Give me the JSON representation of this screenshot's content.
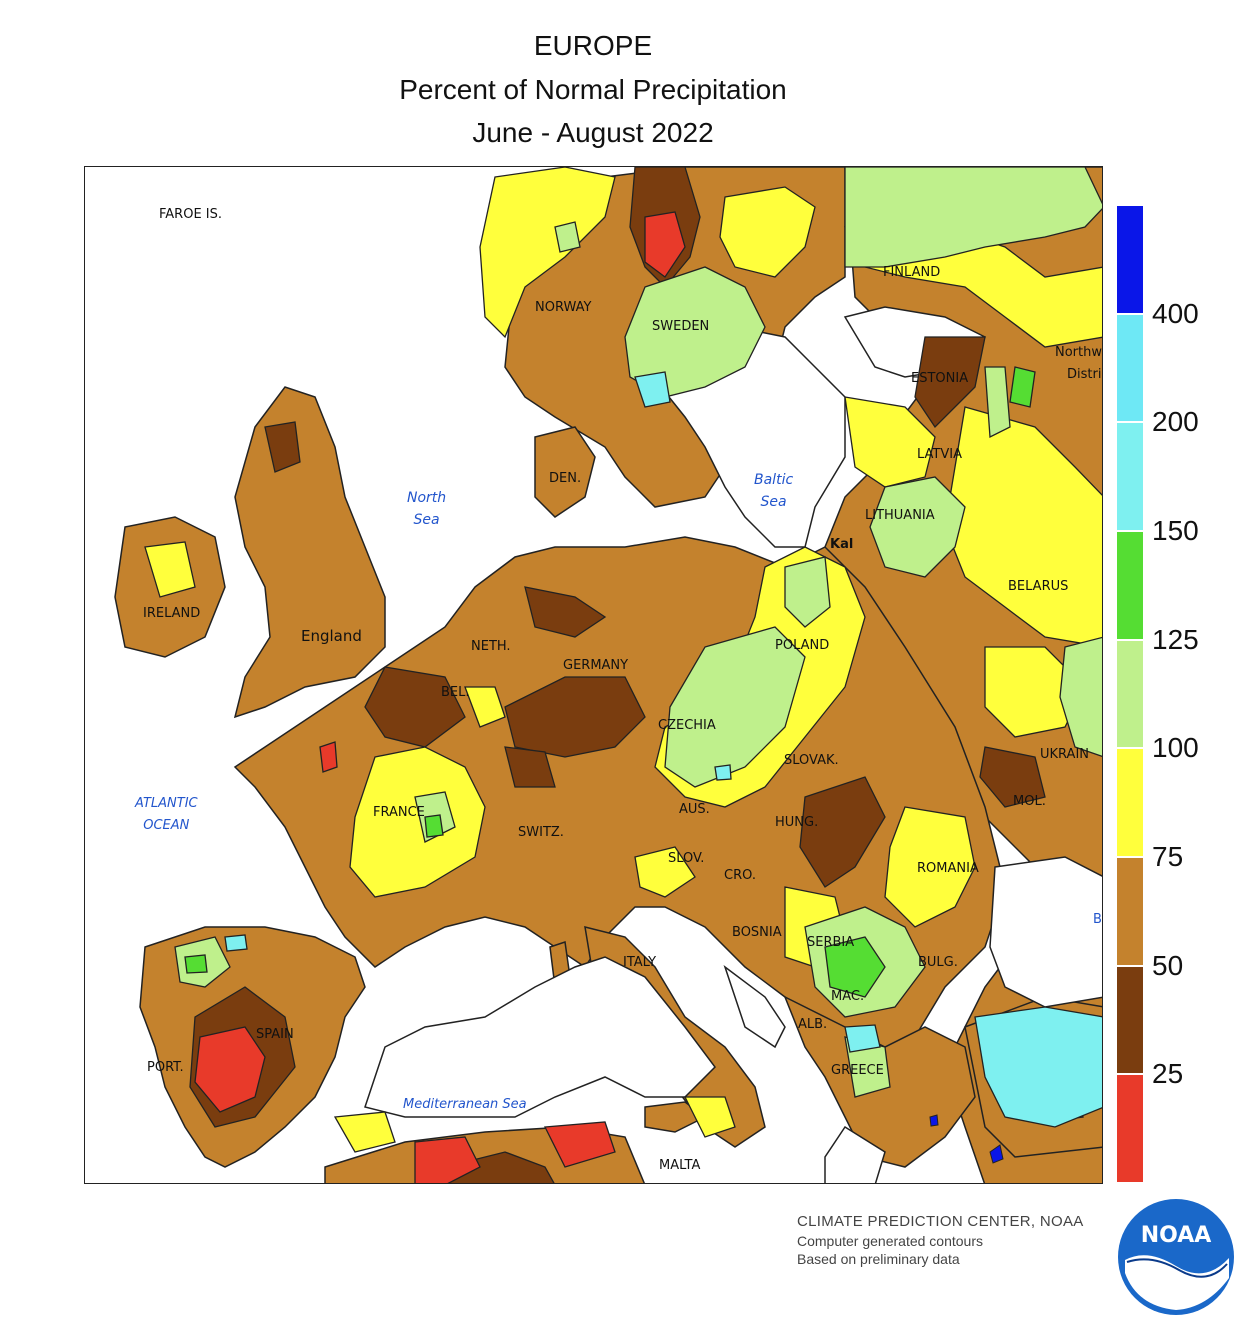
{
  "title": "EUROPE",
  "subtitle": "Percent of Normal Precipitation",
  "period": "June - August 2022",
  "map_labels": {
    "faroe": "FAROE IS.",
    "norway": "NORWAY",
    "sweden": "SWEDEN",
    "finland": "FINLAND",
    "northwest_district": "Northw",
    "northwest_district2": "Distri",
    "estonia": "ESTONIA",
    "latvia": "LATVIA",
    "lithuania": "LITHUANIA",
    "kal": "Kal",
    "belarus": "BELARUS",
    "ukraine": "UKRAIN",
    "moldova": "MOL.",
    "romania": "ROMANIA",
    "bulgaria": "BULG.",
    "serbia": "SERBIA",
    "bosnia": "BOSNIA",
    "croatia": "CRO.",
    "slovenia": "SLOV.",
    "hungary": "HUNG.",
    "slovakia": "SLOVAK.",
    "austria": "AUS.",
    "czechia": "CZECHIA",
    "poland": "POLAND",
    "germany": "GERMANY",
    "denmark": "DEN.",
    "netherlands": "NETH.",
    "belgium": "BEL.",
    "switzerland": "SWITZ.",
    "france": "FRANCE",
    "italy": "ITALY",
    "albania": "ALB.",
    "macedonia": "MAC.",
    "greece": "GREECE",
    "malta": "MALTA",
    "spain": "SPAIN",
    "portugal": "PORT.",
    "ireland": "IRELAND",
    "england": "England",
    "black_sea": "B"
  },
  "water_labels": {
    "north_sea": [
      "North",
      "Sea"
    ],
    "baltic_sea": [
      "Baltic",
      "Sea"
    ],
    "atlantic": [
      "ATLANTIC",
      "OCEAN"
    ],
    "mediterranean": "Mediterranean Sea"
  },
  "legend": {
    "classes": [
      {
        "range": "> 400",
        "color": "#0a16e8"
      },
      {
        "range": "200-400",
        "color": "#6ee8f5"
      },
      {
        "range": "150-200",
        "color": "#7ef0f0"
      },
      {
        "range": "125-150",
        "color": "#55dd33"
      },
      {
        "range": "100-125",
        "color": "#bff08c"
      },
      {
        "range": "75-100",
        "color": "#ffff3c"
      },
      {
        "range": "50-75",
        "color": "#c4822d"
      },
      {
        "range": "25-50",
        "color": "#7a3d0f"
      },
      {
        "range": "< 25",
        "color": "#e83a2a"
      }
    ],
    "ticks": [
      "400",
      "200",
      "150",
      "125",
      "100",
      "75",
      "50",
      "25"
    ]
  },
  "credits": {
    "line1": "CLIMATE PREDICTION CENTER, NOAA",
    "line2": "Computer generated contours",
    "line3": "Based on preliminary data"
  },
  "logo": {
    "text": "NOAA",
    "colors": {
      "blue": "#1a68c9",
      "navy": "#0a3a8a"
    }
  }
}
